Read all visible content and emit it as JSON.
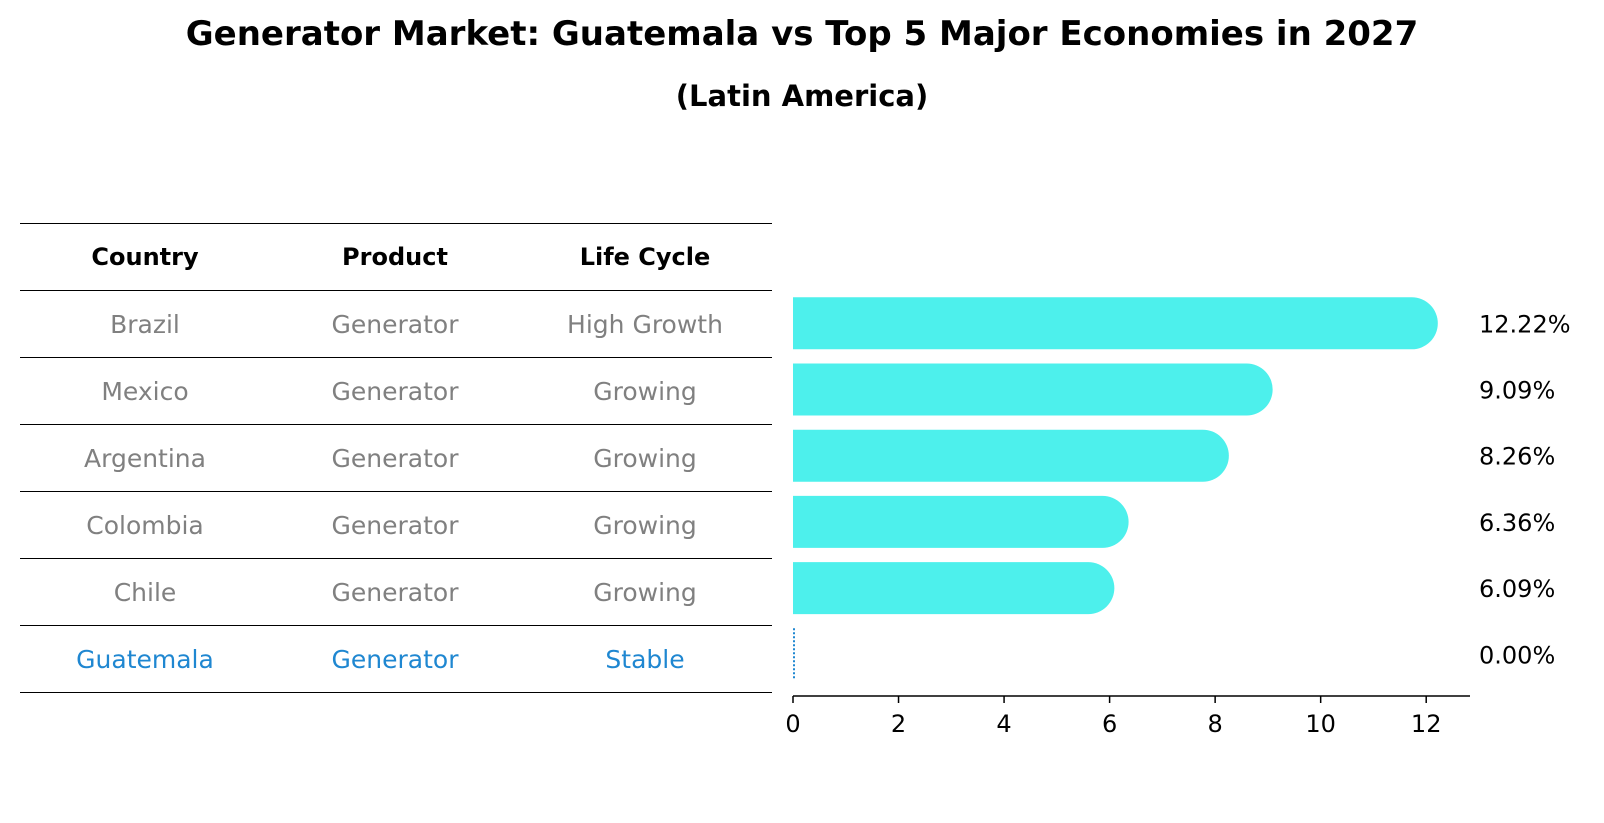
{
  "title": "Generator Market: Guatemala vs Top 5 Major Economies in 2027",
  "subtitle": "(Latin America)",
  "table": {
    "headers": [
      "Country",
      "Product",
      "Life Cycle"
    ],
    "rows": [
      [
        "Brazil",
        "Generator",
        "High Growth"
      ],
      [
        "Mexico",
        "Generator",
        "Growing"
      ],
      [
        "Argentina",
        "Generator",
        "Growing"
      ],
      [
        "Colombia",
        "Generator",
        "Growing"
      ],
      [
        "Chile",
        "Generator",
        "Growing"
      ],
      [
        "Guatemala",
        "Generator",
        "Stable"
      ]
    ],
    "highlight_row": 5
  },
  "colors": {
    "bar": "#4df0ec",
    "highlight_text": "#1f87d1",
    "muted_text": "#808080"
  },
  "chart_data": {
    "type": "bar",
    "orientation": "horizontal",
    "title": "Generator Market: Guatemala vs Top 5 Major Economies in 2027",
    "subtitle": "(Latin America)",
    "categories": [
      "Brazil",
      "Mexico",
      "Argentina",
      "Colombia",
      "Chile",
      "Guatemala"
    ],
    "values": [
      12.22,
      9.09,
      8.26,
      6.36,
      6.09,
      0.0
    ],
    "value_labels": [
      "12.22%",
      "9.09%",
      "8.26%",
      "6.36%",
      "6.09%",
      "0.00%"
    ],
    "xticks": [
      0,
      2,
      4,
      6,
      8,
      10,
      12
    ],
    "xlim": [
      0,
      12.83
    ],
    "xlabel": "",
    "ylabel": "",
    "grid": false,
    "legend": "none"
  }
}
